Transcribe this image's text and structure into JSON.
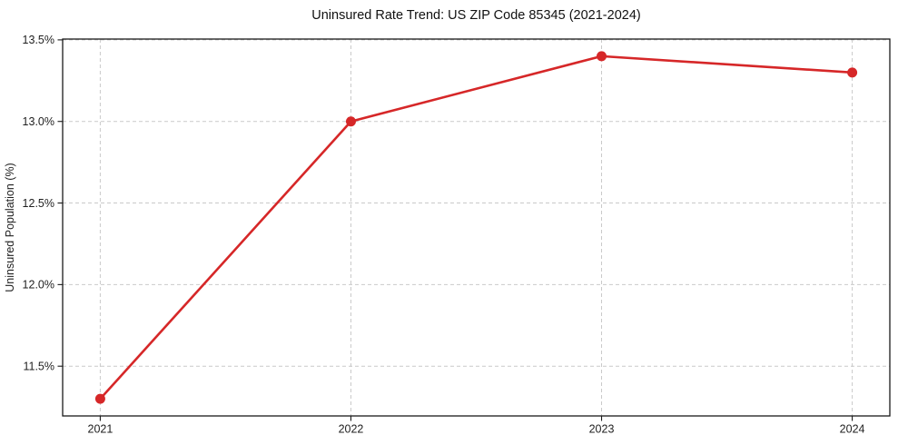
{
  "chart_data": {
    "type": "line",
    "title": "Uninsured Rate Trend: US ZIP Code 85345 (2021-2024)",
    "xlabel": "",
    "ylabel": "Uninsured Population (%)",
    "x": [
      2021,
      2022,
      2023,
      2024
    ],
    "xticklabels": [
      "2021",
      "2022",
      "2023",
      "2024"
    ],
    "values": [
      11.3,
      13.0,
      13.4,
      13.3
    ],
    "yticks": [
      11.5,
      12.0,
      12.5,
      13.0,
      13.5
    ],
    "yticklabels": [
      "11.5%",
      "12.0%",
      "12.5%",
      "13.0%",
      "13.5%"
    ],
    "xlim": [
      2020.85,
      2024.15
    ],
    "ylim": [
      11.195,
      13.505
    ],
    "grid": true,
    "grid_style": "dashed",
    "legend": "none",
    "line_color": "#d62728",
    "marker": "circle",
    "grid_color": "#c9c9c9",
    "background_color": "#ffffff",
    "text_color": "#1f1f1f"
  }
}
